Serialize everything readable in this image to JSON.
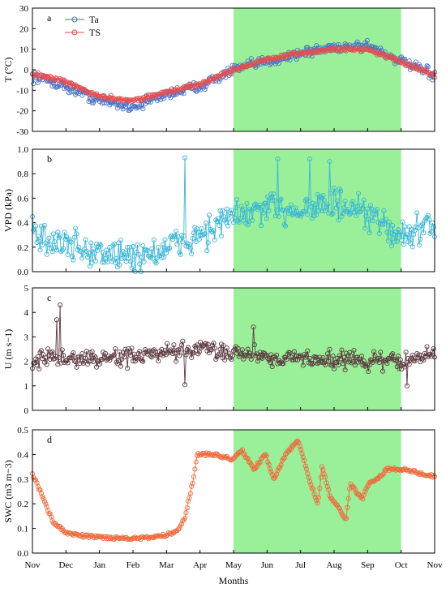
{
  "figure": {
    "xlabel": "Months",
    "months": [
      "Nov",
      "Dec",
      "Jan",
      "Feb",
      "Mar",
      "Apr",
      "May",
      "Jun",
      "Jul",
      "Aug",
      "Sep",
      "Oct",
      "Nov"
    ],
    "growing_season": {
      "start_month_index": 6,
      "end_month_index": 11,
      "color": "#99f099"
    }
  },
  "chart_data": [
    {
      "panel": "a",
      "type": "line",
      "ylabel": "T (°C)",
      "ylim": [
        -30,
        30
      ],
      "yticks": [
        -30,
        -20,
        -10,
        0,
        10,
        20,
        30
      ],
      "legend": {
        "position": "top-left",
        "entries": [
          "Ta",
          "TS"
        ]
      },
      "series": [
        {
          "name": "Ta",
          "color": "#4a72c8",
          "monthly_anchor_values": [
            -3,
            -8,
            -15,
            -18,
            -12,
            -8,
            0,
            4,
            8,
            11,
            12,
            4,
            -3
          ],
          "noise": 3.2
        },
        {
          "name": "TS",
          "color": "#e35050",
          "monthly_anchor_values": [
            -2,
            -6,
            -13,
            -15,
            -11,
            -7,
            0,
            5,
            8,
            10,
            10,
            4,
            -3
          ],
          "noise": 1.2
        }
      ]
    },
    {
      "panel": "b",
      "type": "line",
      "ylabel": "VPD (kPa)",
      "ylim": [
        0.0,
        1.0
      ],
      "yticks": [
        0.0,
        0.2,
        0.4,
        0.6,
        0.8,
        1.0
      ],
      "series": [
        {
          "name": "VPD",
          "color": "#3ab6d6",
          "monthly_anchor_values": [
            0.3,
            0.22,
            0.15,
            0.12,
            0.18,
            0.3,
            0.45,
            0.5,
            0.52,
            0.55,
            0.45,
            0.3,
            0.35
          ],
          "noise": 0.17,
          "peaks": [
            [
              0.0,
              0.45
            ],
            [
              0.38,
              0.93
            ],
            [
              0.61,
              0.92
            ],
            [
              0.69,
              0.92
            ],
            [
              0.74,
              0.9
            ]
          ]
        }
      ]
    },
    {
      "panel": "c",
      "type": "line",
      "ylabel": "U (m s−1)",
      "ylim": [
        0,
        5
      ],
      "yticks": [
        0,
        1,
        2,
        3,
        4,
        5
      ],
      "series": [
        {
          "name": "U",
          "color": "#5c3a40",
          "monthly_anchor_values": [
            2.1,
            2.1,
            2.1,
            2.2,
            2.3,
            2.5,
            2.4,
            2.2,
            2.1,
            2.1,
            2.0,
            2.0,
            2.3
          ],
          "noise": 0.45,
          "peaks": [
            [
              0.07,
              4.3
            ],
            [
              0.06,
              3.7
            ],
            [
              0.55,
              3.4
            ],
            [
              0.38,
              1.05
            ],
            [
              0.93,
              1.0
            ]
          ]
        }
      ]
    },
    {
      "panel": "d",
      "type": "line",
      "ylabel": "SWC (m3 m−3)",
      "ylim": [
        0.0,
        0.5
      ],
      "yticks": [
        0.0,
        0.1,
        0.2,
        0.3,
        0.4,
        0.5
      ],
      "series": [
        {
          "name": "SWC",
          "color": "#f06a3c",
          "daily_profile": [
            [
              0.0,
              0.32
            ],
            [
              0.02,
              0.25
            ],
            [
              0.05,
              0.13
            ],
            [
              0.08,
              0.085
            ],
            [
              0.12,
              0.07
            ],
            [
              0.2,
              0.062
            ],
            [
              0.28,
              0.06
            ],
            [
              0.33,
              0.072
            ],
            [
              0.36,
              0.09
            ],
            [
              0.38,
              0.15
            ],
            [
              0.4,
              0.3
            ],
            [
              0.41,
              0.4
            ],
            [
              0.45,
              0.4
            ],
            [
              0.5,
              0.38
            ],
            [
              0.52,
              0.42
            ],
            [
              0.55,
              0.34
            ],
            [
              0.58,
              0.4
            ],
            [
              0.6,
              0.3
            ],
            [
              0.63,
              0.4
            ],
            [
              0.66,
              0.46
            ],
            [
              0.69,
              0.29
            ],
            [
              0.71,
              0.2
            ],
            [
              0.72,
              0.35
            ],
            [
              0.74,
              0.23
            ],
            [
              0.77,
              0.16
            ],
            [
              0.78,
              0.14
            ],
            [
              0.79,
              0.28
            ],
            [
              0.82,
              0.22
            ],
            [
              0.84,
              0.29
            ],
            [
              0.86,
              0.3
            ],
            [
              0.88,
              0.34
            ],
            [
              0.93,
              0.34
            ],
            [
              0.97,
              0.32
            ],
            [
              1.0,
              0.31
            ]
          ]
        }
      ]
    }
  ]
}
